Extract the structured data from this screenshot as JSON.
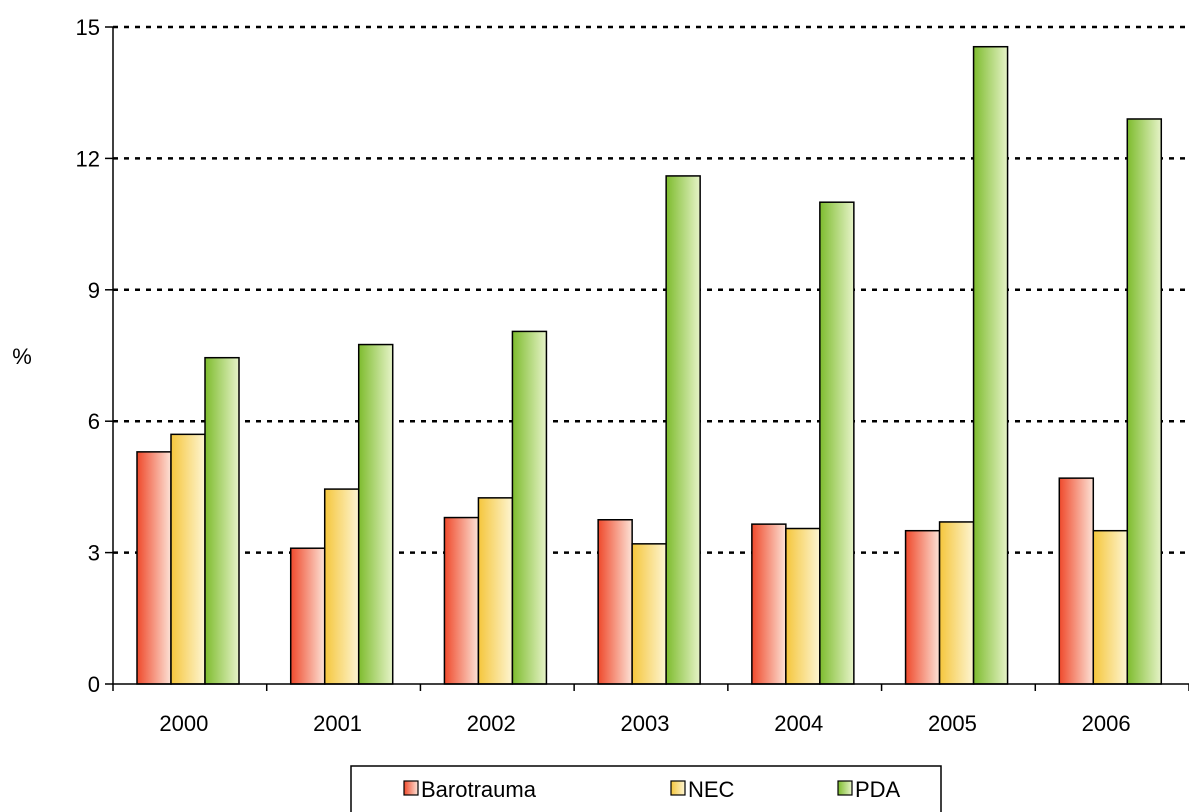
{
  "chart_data": {
    "type": "bar",
    "title": "",
    "xlabel": "",
    "ylabel": "%",
    "categories": [
      "2000",
      "2001",
      "2002",
      "2003",
      "2004",
      "2005",
      "2006"
    ],
    "ylim": [
      0,
      15
    ],
    "yticks": [
      0,
      3,
      6,
      9,
      12,
      15
    ],
    "grid": "dotted horizontal",
    "legend_position": "bottom",
    "series": [
      {
        "name": "Barotrauma",
        "color": "#e8563a",
        "values": [
          5.3,
          3.1,
          3.8,
          3.75,
          3.65,
          3.5,
          4.7
        ]
      },
      {
        "name": "NEC",
        "color": "#f5cb4a",
        "values": [
          5.7,
          4.45,
          4.25,
          3.2,
          3.55,
          3.7,
          3.5
        ]
      },
      {
        "name": "PDA",
        "color": "#8cc63e",
        "values": [
          7.45,
          7.75,
          8.05,
          11.6,
          11.0,
          14.55,
          12.9
        ]
      }
    ]
  }
}
